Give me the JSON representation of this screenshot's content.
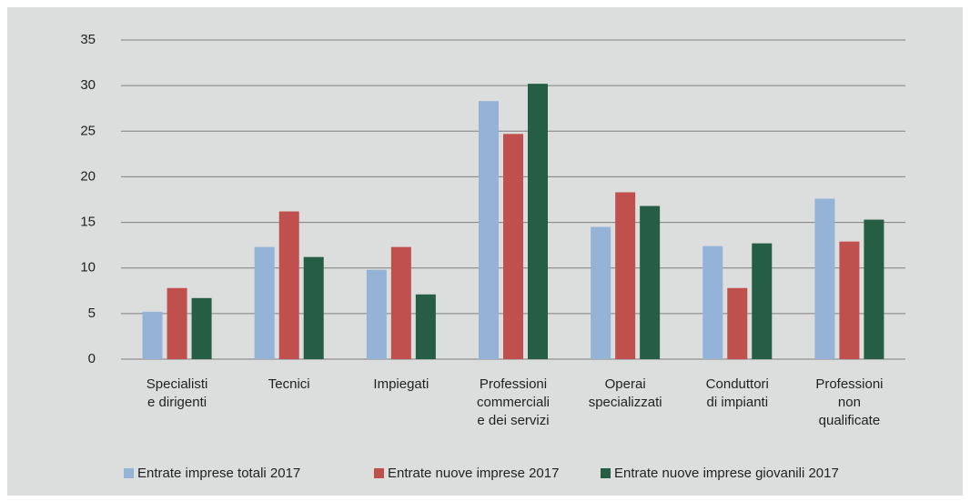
{
  "chart_data": {
    "type": "bar",
    "categories": [
      "Specialisti\ne dirigenti",
      "Tecnici",
      "Impiegati",
      "Professioni\ncommerciali\ne dei servizi",
      "Operai\nspecializzati",
      "Conduttori\ndi impianti",
      "Professioni\nnon\nqualificate"
    ],
    "series": [
      {
        "name": "Entrate imprese totali 2017",
        "color": "#95b3d7",
        "values": [
          5.2,
          12.3,
          9.8,
          28.3,
          14.5,
          12.4,
          17.6
        ]
      },
      {
        "name": "Entrate nuove imprese 2017",
        "color": "#c0504d",
        "values": [
          7.8,
          16.2,
          12.3,
          24.7,
          18.3,
          7.8,
          12.9
        ]
      },
      {
        "name": "Entrate nuove imprese giovanili 2017",
        "color": "#255e45",
        "values": [
          6.7,
          11.2,
          7.1,
          30.2,
          16.8,
          12.7,
          15.3
        ]
      }
    ],
    "ylim": [
      0,
      35
    ],
    "yticks": [
      0,
      5,
      10,
      15,
      20,
      25,
      30,
      35
    ],
    "grid": true,
    "legend": "bottom"
  }
}
